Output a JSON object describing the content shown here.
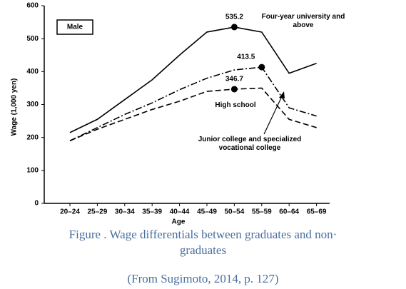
{
  "chart_data": {
    "type": "line",
    "categories": [
      "20–24",
      "25–29",
      "30–34",
      "35–39",
      "40–44",
      "45–49",
      "50–54",
      "55–59",
      "60–64",
      "65–69"
    ],
    "ylim": [
      0,
      600
    ],
    "yticks": [
      0,
      100,
      200,
      300,
      400,
      500,
      600
    ],
    "x_label": "Age",
    "y_label": "Wage (1,000 yen)",
    "panel_label": "Male",
    "series": [
      {
        "name": "Four-year university and above",
        "color": "#000000",
        "dash": "solid",
        "values": [
          215,
          255,
          315,
          375,
          450,
          520,
          535.2,
          520,
          395,
          425
        ],
        "value_labels": [
          null,
          null,
          null,
          null,
          null,
          null,
          "535.2",
          null,
          null,
          null
        ]
      },
      {
        "name": "Junior college and specialized vocational college",
        "color": "#000000",
        "dash": "dashdot",
        "values": [
          190,
          230,
          270,
          305,
          345,
          380,
          405,
          413.5,
          290,
          265
        ],
        "value_labels": [
          null,
          null,
          null,
          null,
          null,
          null,
          null,
          "413.5",
          null,
          null
        ]
      },
      {
        "name": "High school",
        "color": "#000000",
        "dash": "dashed",
        "values": [
          190,
          225,
          255,
          285,
          310,
          340,
          346.7,
          350,
          255,
          230
        ],
        "value_labels": [
          null,
          null,
          null,
          null,
          null,
          null,
          "346.7",
          null,
          null,
          null
        ]
      }
    ]
  },
  "caption": {
    "lines": [
      "Figure . Wage differentials between graduates and non·",
      "graduates"
    ],
    "source": "(From Sugimoto, 2014, p. 127)"
  }
}
